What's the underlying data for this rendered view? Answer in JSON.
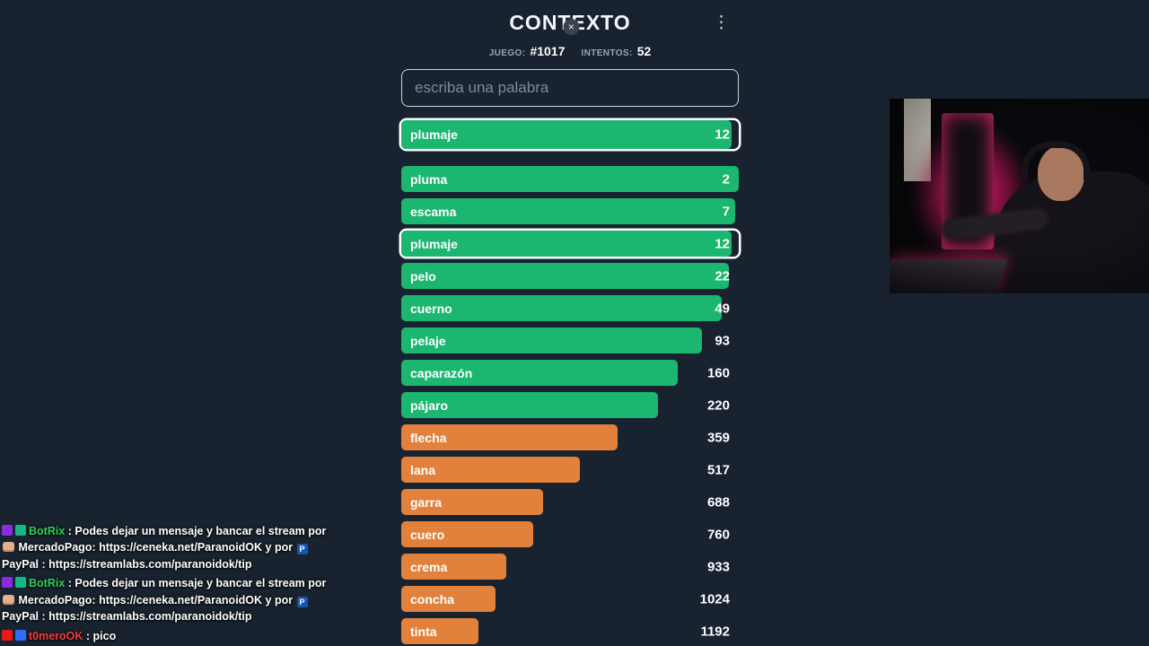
{
  "game": {
    "title": "CONTEXTO",
    "close_glyph": "×",
    "menu_glyph": "⋮",
    "stats": {
      "game_label": "JUEGO:",
      "game_value": "#1017",
      "attempts_label": "INTENTOS:",
      "attempts_value": "52"
    },
    "input_placeholder": "escriba una palabra",
    "colors": {
      "background": "#19222f",
      "green": "#1bb670",
      "orange": "#e2813c"
    },
    "current_guess": {
      "word": "plumaje",
      "rank": "12",
      "width_pct": 98,
      "color": "green",
      "highlight": true
    },
    "guesses": [
      {
        "word": "pluma",
        "rank": "2",
        "width_pct": 100,
        "color": "green",
        "highlight": false
      },
      {
        "word": "escama",
        "rank": "7",
        "width_pct": 99,
        "color": "green",
        "highlight": false
      },
      {
        "word": "plumaje",
        "rank": "12",
        "width_pct": 98,
        "color": "green",
        "highlight": true
      },
      {
        "word": "pelo",
        "rank": "22",
        "width_pct": 97,
        "color": "green",
        "highlight": false
      },
      {
        "word": "cuerno",
        "rank": "49",
        "width_pct": 95,
        "color": "green",
        "highlight": false
      },
      {
        "word": "pelaje",
        "rank": "93",
        "width_pct": 89,
        "color": "green",
        "highlight": false
      },
      {
        "word": "caparazón",
        "rank": "160",
        "width_pct": 82,
        "color": "green",
        "highlight": false
      },
      {
        "word": "pájaro",
        "rank": "220",
        "width_pct": 76,
        "color": "green",
        "highlight": false
      },
      {
        "word": "flecha",
        "rank": "359",
        "width_pct": 64,
        "color": "orange",
        "highlight": false
      },
      {
        "word": "lana",
        "rank": "517",
        "width_pct": 53,
        "color": "orange",
        "highlight": false
      },
      {
        "word": "garra",
        "rank": "688",
        "width_pct": 42,
        "color": "orange",
        "highlight": false
      },
      {
        "word": "cuero",
        "rank": "760",
        "width_pct": 39,
        "color": "orange",
        "highlight": false
      },
      {
        "word": "crema",
        "rank": "933",
        "width_pct": 31,
        "color": "orange",
        "highlight": false
      },
      {
        "word": "concha",
        "rank": "1024",
        "width_pct": 28,
        "color": "orange",
        "highlight": false
      },
      {
        "word": "tinta",
        "rank": "1192",
        "width_pct": 23,
        "color": "orange",
        "highlight": false
      }
    ]
  },
  "chat": {
    "separator": " : ",
    "paypal_glyph": "P",
    "messages": [
      {
        "badges": [
          "#8a2be2",
          "#10b981"
        ],
        "user": "BotRix",
        "user_color": "#2fd05f",
        "segments": [
          {
            "t": "text",
            "v": "Podes dejar un mensaje y bancar el stream por "
          },
          {
            "t": "fist"
          },
          {
            "t": "text",
            "v": " MercadoPago: https://ceneka.net/ParanoidOK y por "
          },
          {
            "t": "pp"
          },
          {
            "t": "text",
            "v": " PayPal : https://streamlabs.com/paranoidok/tip"
          }
        ]
      },
      {
        "badges": [
          "#8a2be2",
          "#10b981"
        ],
        "user": "BotRix",
        "user_color": "#2fd05f",
        "segments": [
          {
            "t": "text",
            "v": "Podes dejar un mensaje y bancar el stream por "
          },
          {
            "t": "fist"
          },
          {
            "t": "text",
            "v": " MercadoPago: https://ceneka.net/ParanoidOK y por "
          },
          {
            "t": "pp"
          },
          {
            "t": "text",
            "v": " PayPal : https://streamlabs.com/paranoidok/tip"
          }
        ]
      },
      {
        "badges": [
          "#e91916",
          "#2e6bff"
        ],
        "user": "t0meroOK",
        "user_color": "#f23c3c",
        "segments": [
          {
            "t": "text",
            "v": "pico"
          }
        ]
      }
    ]
  }
}
